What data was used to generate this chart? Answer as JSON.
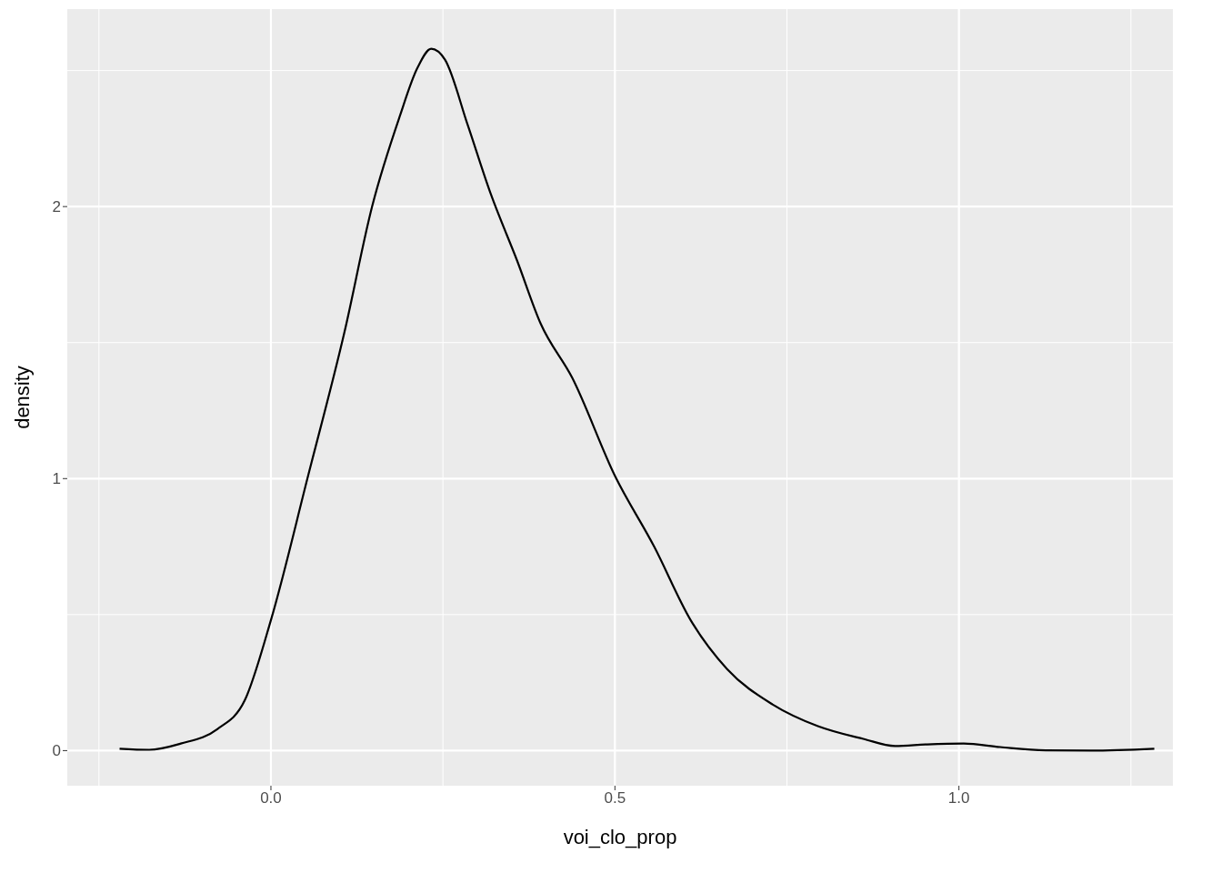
{
  "chart_data": {
    "type": "line",
    "xlabel": "voi_clo_prop",
    "ylabel": "density",
    "x": [
      -0.22,
      -0.177,
      -0.131,
      -0.078,
      -0.038,
      0.0,
      0.054,
      0.107,
      0.147,
      0.187,
      0.213,
      0.233,
      0.253,
      0.286,
      0.319,
      0.358,
      0.392,
      0.438,
      0.5,
      0.557,
      0.61,
      0.663,
      0.729,
      0.795,
      0.861,
      0.907,
      0.954,
      1.007,
      1.06,
      1.126,
      1.192,
      1.284
    ],
    "series": [
      {
        "color": "#000000",
        "values": [
          0.007,
          0.003,
          0.026,
          0.079,
          0.185,
          0.48,
          1.01,
          1.54,
          2.0,
          2.33,
          2.51,
          2.58,
          2.54,
          2.3,
          2.05,
          1.8,
          1.57,
          1.37,
          1.01,
          0.75,
          0.48,
          0.3,
          0.17,
          0.09,
          0.043,
          0.017,
          0.023,
          0.026,
          0.013,
          0.001,
          0.0,
          0.007
        ]
      }
    ],
    "xlim": [
      -0.296,
      1.311
    ],
    "ylim": [
      -0.129,
      2.726
    ],
    "xticks": [
      {
        "value": 0,
        "label": "0.0"
      },
      {
        "value": 0.5,
        "label": "0.5"
      },
      {
        "value": 1,
        "label": "1.0"
      }
    ],
    "yticks": [
      0,
      1,
      2
    ],
    "grid": true,
    "marker": "none",
    "line_style": "solid"
  }
}
